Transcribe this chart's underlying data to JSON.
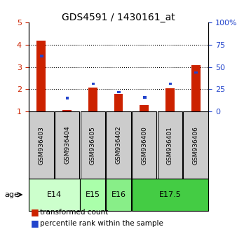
{
  "title": "GDS4591 / 1430161_at",
  "samples": [
    "GSM936403",
    "GSM936404",
    "GSM936405",
    "GSM936402",
    "GSM936400",
    "GSM936401",
    "GSM936406"
  ],
  "transformed_count": [
    4.17,
    1.07,
    2.07,
    1.78,
    1.28,
    2.05,
    3.08
  ],
  "percentile_rank": [
    65,
    15,
    40,
    33,
    15,
    40,
    50
  ],
  "percentile_rank_scaled": [
    3.48,
    1.6,
    2.25,
    1.87,
    1.65,
    2.25,
    2.75
  ],
  "age_groups": [
    {
      "label": "E14",
      "samples": [
        "GSM936403",
        "GSM936404"
      ],
      "color": "#ccffcc"
    },
    {
      "label": "E15",
      "samples": [
        "GSM936405"
      ],
      "color": "#aaffaa"
    },
    {
      "label": "E16",
      "samples": [
        "GSM936402"
      ],
      "color": "#88ee88"
    },
    {
      "label": "E17.5",
      "samples": [
        "GSM936400",
        "GSM936401",
        "GSM936406"
      ],
      "color": "#44cc44"
    }
  ],
  "bar_color_red": "#cc2200",
  "bar_color_blue": "#2244cc",
  "sample_box_color": "#cccccc",
  "ylim": [
    1,
    5
  ],
  "ylabel_left": "",
  "yticks_left": [
    1,
    2,
    3,
    4,
    5
  ],
  "yticks_right": [
    0,
    25,
    50,
    75,
    100
  ],
  "bar_width": 0.35,
  "figsize": [
    3.38,
    3.54
  ],
  "dpi": 100
}
